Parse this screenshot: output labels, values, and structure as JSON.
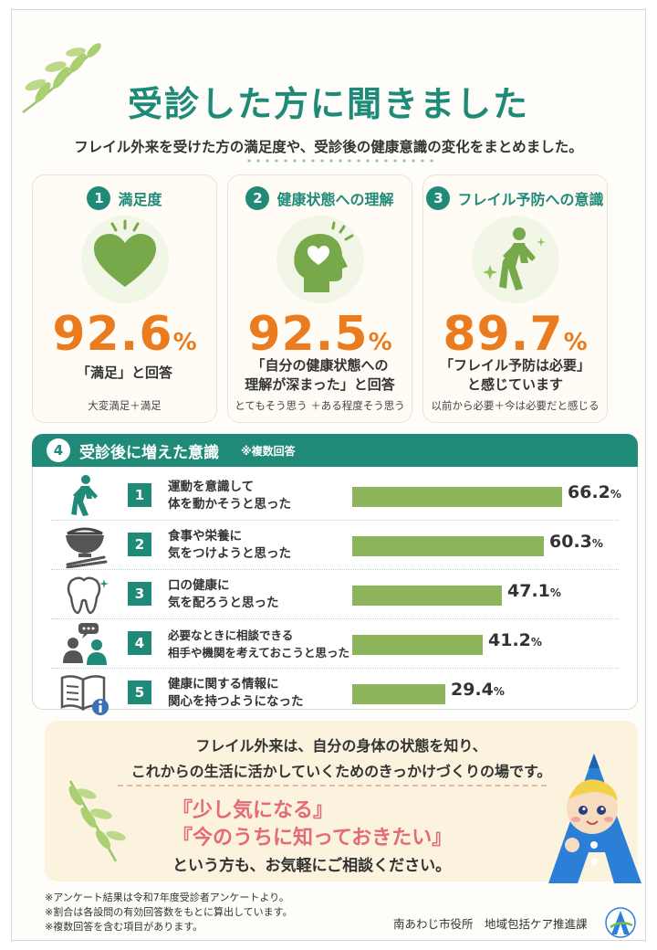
{
  "header": {
    "title": "受診した方に聞きました",
    "subtitle": "フレイル外来を受けた方の満足度や、受診後の健康意識の変化をまとめました。"
  },
  "cards": [
    {
      "num": "1",
      "title": "満足度",
      "icon": "heart-icon",
      "value": "92.6",
      "unit": "%",
      "answer": "「満足」と回答",
      "note": "大変満足＋満足"
    },
    {
      "num": "2",
      "title": "健康状態への理解",
      "icon": "head-heart-icon",
      "value": "92.5",
      "unit": "%",
      "answer": "「自分の健康状態への\n理解が深まった」と回答",
      "note": "とてもそう思う ＋ある程度そう思う"
    },
    {
      "num": "3",
      "title": "フレイル予防への意識",
      "icon": "walking-person-icon",
      "value": "89.7",
      "unit": "%",
      "answer": "「フレイル予防は必要」\nと感じています",
      "note": "以前から必要＋今は必要だと感じる"
    }
  ],
  "section4": {
    "num": "4",
    "title": "受診後に増えた意識",
    "note": "※複数回答",
    "items": [
      {
        "num": "1",
        "text": "運動を意識して\n体を動かそうと思った",
        "value": 66.2,
        "label": "66.2",
        "unit": "%",
        "icon": "walking-icon"
      },
      {
        "num": "2",
        "text": "食事や栄養に\n気をつけようと思った",
        "value": 60.3,
        "label": "60.3",
        "unit": "%",
        "icon": "rice-bowl-icon"
      },
      {
        "num": "3",
        "text": "口の健康に\n気を配ろうと思った",
        "value": 47.1,
        "label": "47.1",
        "unit": "%",
        "icon": "tooth-icon"
      },
      {
        "num": "4",
        "text": "必要なときに相談できる\n相手や機関を考えておこうと思った",
        "value": 41.2,
        "label": "41.2",
        "unit": "%",
        "icon": "consultation-icon"
      },
      {
        "num": "5",
        "text": "健康に関する情報に\n関心を持つようになった",
        "value": 29.4,
        "label": "29.4",
        "unit": "%",
        "icon": "info-book-icon"
      }
    ]
  },
  "message": {
    "line1": "フレイル外来は、自分の身体の状態を知り、",
    "line2": "これからの生活に活かしていくためのきっかけづくりの場です。",
    "quote1": "『少し気になる』",
    "quote2": "『今のうちに知っておきたい』",
    "line3": "という方も、お気軽にご相談ください。"
  },
  "footnotes": [
    "※アンケート結果は令和7年度受診者アンケートより。",
    "※割合は各設問の有効回答数をもとに算出しています。",
    "※複数回答を含む項目があります。"
  ],
  "organization": "南あわじ市役所　地域包括ケア推進課",
  "colors": {
    "teal": "#1f8a78",
    "orange": "#ea7b1f",
    "bar": "#8cb45a",
    "pink": "#e46a74"
  }
}
